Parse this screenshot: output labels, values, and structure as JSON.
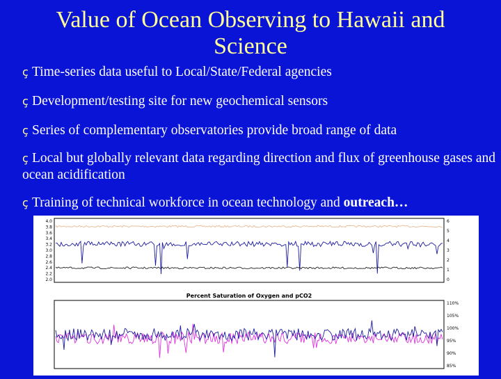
{
  "slide": {
    "title": "Value of Ocean Observing to Hawaii and Science",
    "bullet_glyph": "ç",
    "bullets": [
      {
        "text": "Time-series data useful to Local/State/Federal agencies"
      },
      {
        "text": "Development/testing site for new geochemical sensors"
      },
      {
        "text": "Series of complementary observatories  provide broad range of data"
      },
      {
        "text": "Local but globally relevant data regarding direction and flux of greenhouse gases and ocean acidification"
      },
      {
        "text": "Training of technical workforce in ocean technology and ",
        "bold": "outreach…"
      }
    ]
  },
  "chart_data": [
    {
      "type": "line",
      "title": "",
      "ylabel": "",
      "y2label": "",
      "ylim": [
        2.0,
        4.0
      ],
      "y2lim": [
        0,
        6
      ],
      "yticks": [
        "4.0",
        "3.8",
        "3.6",
        "3.4",
        "3.2",
        "3.0",
        "2.8",
        "2.6",
        "2.4",
        "2.2",
        "2.0"
      ],
      "y2ticks": [
        "6",
        "5",
        "4",
        "3",
        "2",
        "1",
        "0"
      ],
      "x_ticks": [],
      "series": [
        {
          "name": "",
          "color": "#e8b890",
          "base": 3.75
        },
        {
          "name": "",
          "color": "#1a1aa0",
          "base": 3.2
        },
        {
          "name": "",
          "color": "#222222",
          "base": 2.45
        }
      ]
    },
    {
      "type": "line",
      "title": "Percent Saturation of Oxygen and pCO2",
      "ylabel": "",
      "y2label": "",
      "yticks": [],
      "y2ticks": [
        "110%",
        "105%",
        "100%",
        "95%",
        "90%",
        "85%"
      ],
      "x_ticks": [],
      "series": [
        {
          "name": "",
          "color": "#e030e0",
          "base": 0.55
        },
        {
          "name": "",
          "color": "#1a1aa0",
          "base": 0.5
        }
      ]
    }
  ]
}
